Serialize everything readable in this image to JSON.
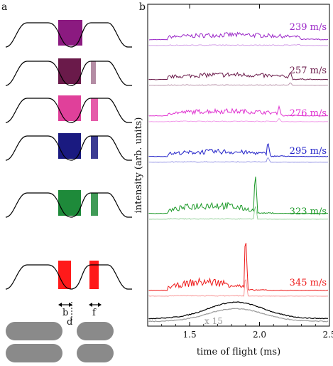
{
  "panel_a": {
    "label": "a",
    "dim_b": "b",
    "dim_d": "d",
    "dim_f": "f",
    "colors": [
      "#8b1a80",
      "#6a1a4a",
      "#e0409a",
      "#1a1a80",
      "#1e8a3a",
      "#ff1a1a"
    ]
  },
  "panel_b": {
    "label": "b",
    "ylabel": "intensity (arb. units)",
    "xlabel": "time of flight (ms)",
    "scale_note": "x 15"
  },
  "chart_data": {
    "type": "line",
    "xlim": [
      1.2,
      2.5
    ],
    "xticks": [
      "1.5",
      "2.0",
      "2.5"
    ],
    "series": [
      {
        "name": "239 m/s",
        "color": "#9b28c8",
        "peak_x": 2.28
      },
      {
        "name": "257 m/s",
        "color": "#6a1a4a",
        "peak_x": 2.22
      },
      {
        "name": "276 m/s",
        "color": "#e030d0",
        "peak_x": 2.14
      },
      {
        "name": "295 m/s",
        "color": "#2020c8",
        "peak_x": 2.06
      },
      {
        "name": "323 m/s",
        "color": "#1e9a2a",
        "peak_x": 1.97
      },
      {
        "name": "345 m/s",
        "color": "#ee1a1a",
        "peak_x": 1.9
      }
    ]
  }
}
